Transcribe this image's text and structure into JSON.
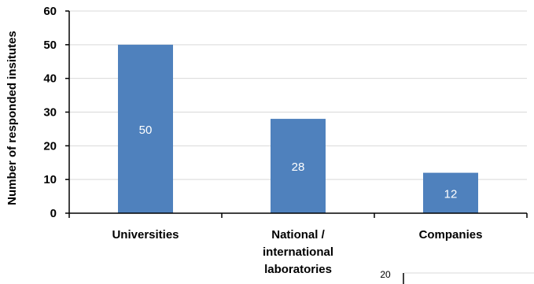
{
  "chart_data": {
    "type": "bar",
    "categories": [
      "Universities",
      "National / international laboratories",
      "Companies"
    ],
    "category_lines": [
      [
        "Universities"
      ],
      [
        "National /",
        "international",
        "laboratories"
      ],
      [
        "Companies"
      ]
    ],
    "values": [
      50,
      28,
      12
    ],
    "data_labels": [
      "50",
      "28",
      "12"
    ],
    "title": "",
    "xlabel": "",
    "ylabel": "Number of responded insitutes",
    "ylim": [
      0,
      60
    ],
    "yticks": [
      0,
      10,
      20,
      30,
      40,
      50,
      60
    ],
    "grid": true,
    "bar_color": "#4f81bd",
    "grid_color": "#d9d9d9"
  },
  "adjacent_chart_fragment": {
    "tick_label": "20"
  }
}
